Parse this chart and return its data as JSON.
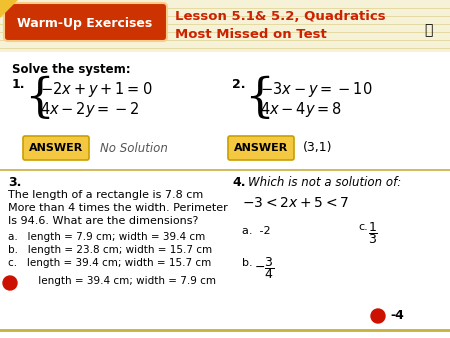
{
  "bg_color": "#f5f2d8",
  "content_bg": "#ffffff",
  "warmup_bg": "#cc3300",
  "warmup_text": "Warm-Up Exercises",
  "title_line1": "Lesson 5.1& 5.2, Quadratics",
  "title_line2": "Most Missed on Test",
  "title_color": "#cc2200",
  "solve_text": "Solve the system:",
  "p1_eq1": "$-2x + y + 1 = 0$",
  "p1_eq2": "$4x - 2y = -2$",
  "p2_eq1": "$-3x - y = -10$",
  "p2_eq2": "$4x - 4y = 8$",
  "answer_box_color": "#f5c842",
  "answer_border": "#c8a000",
  "ans1_label": "ANSWER",
  "ans1_val": "No Solution",
  "ans2_label": "ANSWER",
  "ans2_val": "(3,1)",
  "p3_num": "3.",
  "p3_line1": "The length of a rectangle is 7.8 cm",
  "p3_line2": "More than 4 times the width. Perimeter",
  "p3_line3": "Is 94.6. What are the dimensions?",
  "p3a": "a.   length = 7.9 cm; width = 39.4 cm",
  "p3b": "b.   length = 23.8 cm; width = 15.7 cm",
  "p3c": "c.   length = 39.4 cm; width = 15.7 cm",
  "p3d": "     length = 39.4 cm; width = 7.9 cm",
  "p4_num": "4.",
  "p4_title": "Which is not a solution of:",
  "p4_ineq": "$-3 < 2x + 5 < 7$",
  "p4a": "a.  -2",
  "p4b_label": "b.",
  "p4b_val": "$-\\dfrac{3}{4}$",
  "p4c_label": "c.",
  "p4c_val": "$\\dfrac{1}{3}$",
  "p4d": "-4",
  "dot_color": "#cc1100",
  "hline_color": "#c8b040",
  "header_hline_color": "#c8b040"
}
